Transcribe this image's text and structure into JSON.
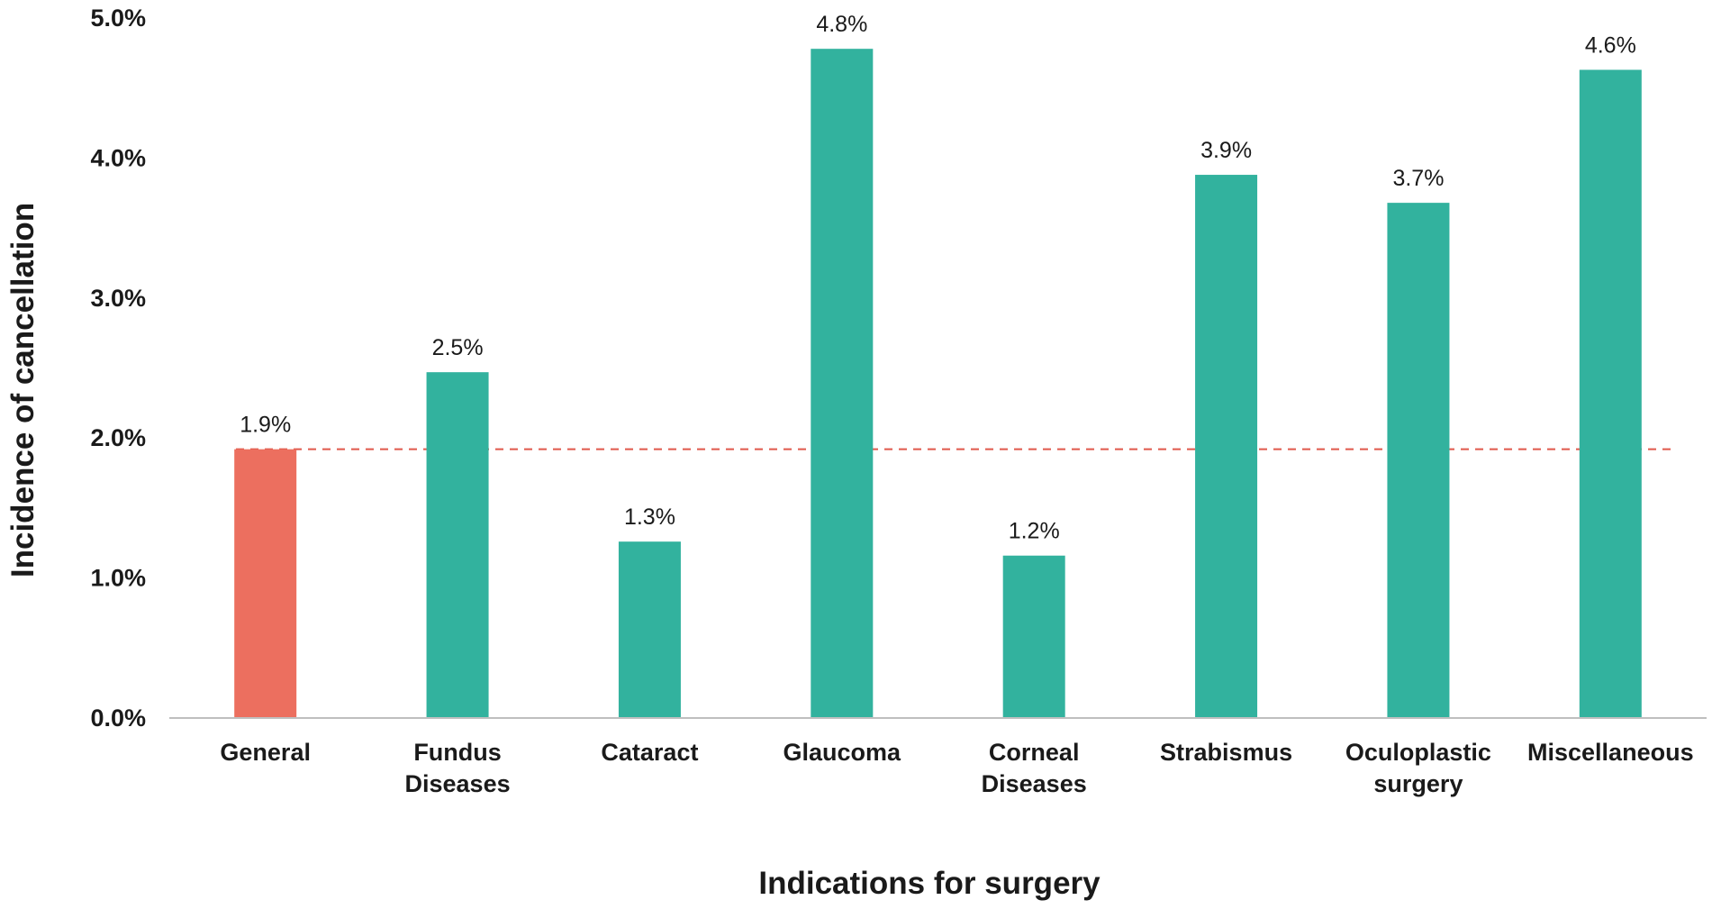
{
  "chart_data": {
    "type": "bar",
    "categories": [
      [
        "General"
      ],
      [
        "Fundus",
        "Diseases"
      ],
      [
        "Cataract"
      ],
      [
        "Glaucoma"
      ],
      [
        "Corneal",
        "Diseases"
      ],
      [
        "Strabismus"
      ],
      [
        "Oculoplastic",
        "surgery"
      ],
      [
        "Miscellaneous"
      ]
    ],
    "values": [
      1.9,
      2.5,
      1.3,
      4.8,
      1.2,
      3.9,
      3.7,
      4.6
    ],
    "plotted_values": [
      1.92,
      2.47,
      1.26,
      4.78,
      1.16,
      3.88,
      3.68,
      4.63
    ],
    "data_labels": [
      "1.9%",
      "2.5%",
      "1.3%",
      "4.8%",
      "1.2%",
      "3.9%",
      "3.7%",
      "4.6%"
    ],
    "bar_colors": [
      "#ec6f5f",
      "#32b29e",
      "#32b29e",
      "#32b29e",
      "#32b29e",
      "#32b29e",
      "#32b29e",
      "#32b29e"
    ],
    "reference_line": {
      "value": 1.92,
      "color": "#e0584b",
      "style": "dashed"
    },
    "xlabel": "Indications for surgery",
    "ylabel": "Incidence of cancellation",
    "ylim": [
      0,
      5
    ],
    "yticks": [
      0,
      1,
      2,
      3,
      4,
      5
    ],
    "ytick_labels": [
      "0.0%",
      "1.0%",
      "2.0%",
      "3.0%",
      "4.0%",
      "5.0%"
    ],
    "grid": false,
    "legend": "none",
    "axis_color": "#bfbfbf"
  }
}
